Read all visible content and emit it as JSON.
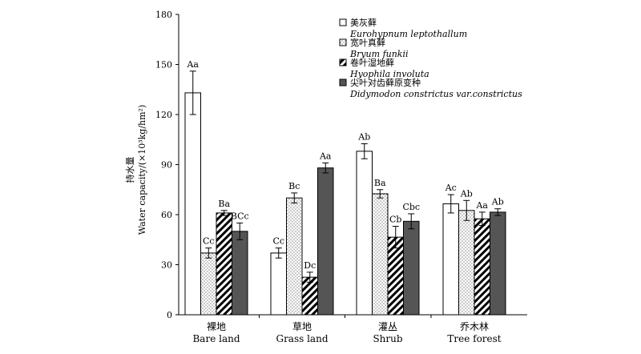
{
  "chart_data": {
    "type": "bar",
    "categories": [
      {
        "zh": "裸地",
        "en": "Bare land"
      },
      {
        "zh": "草地",
        "en": "Grass land"
      },
      {
        "zh": "灌丛",
        "en": "Shrub"
      },
      {
        "zh": "乔木林",
        "en": "Tree forest"
      }
    ],
    "series": [
      {
        "name_zh": "美灰藓",
        "name_sci": "Eurohypnum leptothallum",
        "pattern": "white",
        "values": [
          133,
          37,
          98,
          66.5
        ],
        "errors": [
          13,
          3,
          4.5,
          5.5
        ],
        "labels": [
          "Aa",
          "Cc",
          "Ab",
          "Ac"
        ]
      },
      {
        "name_zh": "宽叶真藓",
        "name_sci": "Bryum funkii",
        "pattern": "dots",
        "values": [
          37,
          70,
          72.5,
          62.5
        ],
        "errors": [
          3,
          3,
          2.5,
          6
        ],
        "labels": [
          "Cc",
          "Bc",
          "Ba",
          "Ab"
        ]
      },
      {
        "name_zh": "卷叶湿地藓",
        "name_sci": "Hyophila involuta",
        "pattern": "hatch",
        "values": [
          61,
          22.5,
          46.5,
          57.5
        ],
        "errors": [
          1.5,
          3,
          6.5,
          4
        ],
        "labels": [
          "Ba",
          "Dc",
          "Cb",
          "Aa"
        ]
      },
      {
        "name_zh": "尖叶对齿藓原变种",
        "name_sci": "Didymodon constrictus var.constrictus",
        "pattern": "gray",
        "values": [
          50,
          88,
          56,
          61.5
        ],
        "errors": [
          5,
          3,
          4.5,
          2
        ],
        "labels": [
          "BCc",
          "Aa",
          "Cbc",
          "Ab"
        ]
      }
    ],
    "series_order_note": "",
    "ylim": [
      0,
      180
    ],
    "yticks": [
      0,
      30,
      60,
      90,
      120,
      150,
      180
    ],
    "ylabel_zh": "持水量",
    "ylabel_en": "Water capacity/(×10³kg/hm²)",
    "legend_position": "top-right",
    "grid": false,
    "colors": {
      "axis": "#000000",
      "gray_bar": "#555555",
      "white_bar": "#ffffff"
    }
  }
}
